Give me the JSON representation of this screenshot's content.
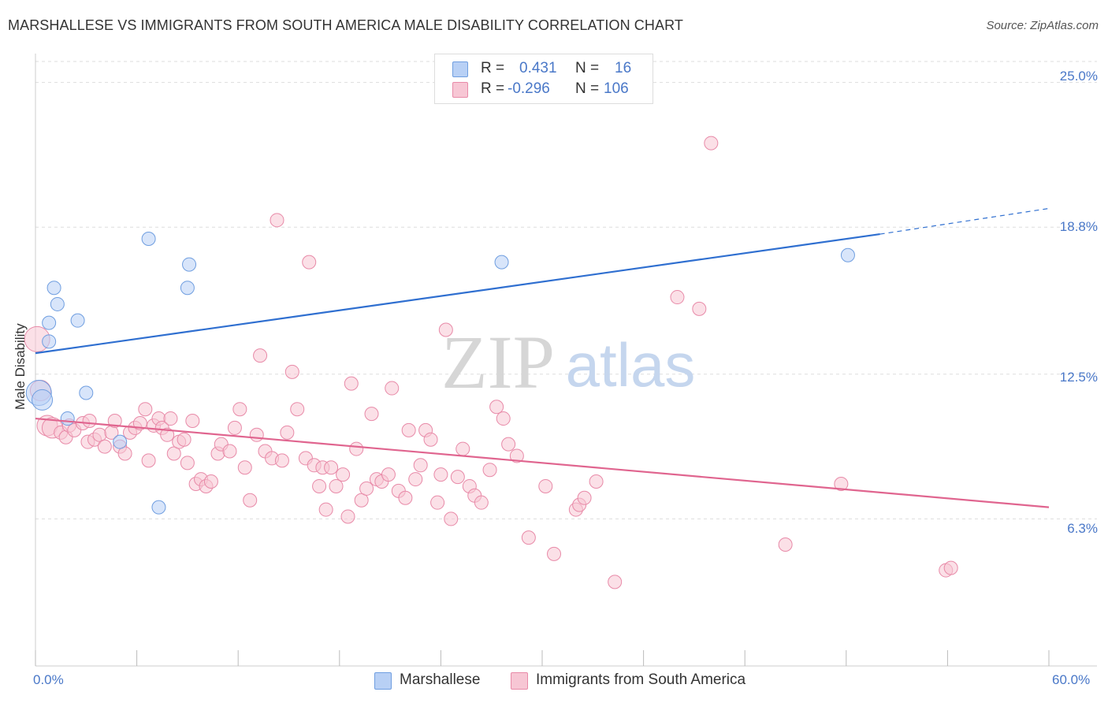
{
  "title": "MARSHALLESE VS IMMIGRANTS FROM SOUTH AMERICA MALE DISABILITY CORRELATION CHART",
  "source": "Source: ZipAtlas.com",
  "watermark": {
    "zip": "ZIP",
    "atlas": "atlas"
  },
  "colors": {
    "blue_fill": "#b8d0f5",
    "blue_stroke": "#6f9ee0",
    "blue_line": "#2f6fd0",
    "pink_fill": "#f7c6d4",
    "pink_stroke": "#e88aa8",
    "pink_line": "#e0658f",
    "grid": "#dddddd",
    "tick_text": "#4a78c8"
  },
  "legend": {
    "rows": [
      {
        "r_label": "R =",
        "r_value": "0.431",
        "n_label": "N =",
        "n_value": "16"
      },
      {
        "r_label": "R =",
        "r_value": "-0.296",
        "n_label": "N =",
        "n_value": "106"
      }
    ]
  },
  "bottom_legend": [
    "Marshallese",
    "Immigrants from South America"
  ],
  "chart_data": {
    "type": "scatter",
    "title": "MARSHALLESE VS IMMIGRANTS FROM SOUTH AMERICA MALE DISABILITY CORRELATION CHART",
    "xlabel": "",
    "ylabel": "Male Disability",
    "xlim": [
      0,
      60
    ],
    "ylim": [
      0,
      26.1
    ],
    "x_tick_labels": [
      "0.0%",
      "60.0%"
    ],
    "y_ticks": [
      6.3,
      12.5,
      18.8,
      25.0
    ],
    "y_tick_labels": [
      "6.3%",
      "12.5%",
      "18.8%",
      "25.0%"
    ],
    "grid": "horizontal dashed",
    "series": [
      {
        "name": "Marshallese",
        "points": [
          [
            0.2,
            11.7
          ],
          [
            0.4,
            11.4
          ],
          [
            0.8,
            14.7
          ],
          [
            0.8,
            13.9
          ],
          [
            1.1,
            16.2
          ],
          [
            1.3,
            15.5
          ],
          [
            1.9,
            10.6
          ],
          [
            2.5,
            14.8
          ],
          [
            3.0,
            11.7
          ],
          [
            5.0,
            9.6
          ],
          [
            6.7,
            18.3
          ],
          [
            7.3,
            6.8
          ],
          [
            9.1,
            17.2
          ],
          [
            9.0,
            16.2
          ],
          [
            27.6,
            17.3
          ],
          [
            48.1,
            17.6
          ]
        ],
        "trend": {
          "x": [
            0,
            50
          ],
          "y": [
            13.4,
            18.5
          ],
          "dashed_to": [
            60,
            19.6
          ]
        }
      },
      {
        "name": "Immigrants from South America",
        "points": [
          [
            0.1,
            14.0
          ],
          [
            0.3,
            11.8
          ],
          [
            0.7,
            10.3
          ],
          [
            1.0,
            10.2
          ],
          [
            1.5,
            10.0
          ],
          [
            1.8,
            9.8
          ],
          [
            2.0,
            10.3
          ],
          [
            2.3,
            10.1
          ],
          [
            2.8,
            10.4
          ],
          [
            3.2,
            10.5
          ],
          [
            3.1,
            9.6
          ],
          [
            3.5,
            9.7
          ],
          [
            3.8,
            9.9
          ],
          [
            4.1,
            9.4
          ],
          [
            4.5,
            10.0
          ],
          [
            4.7,
            10.5
          ],
          [
            5.0,
            9.4
          ],
          [
            5.3,
            9.1
          ],
          [
            5.6,
            10.0
          ],
          [
            5.9,
            10.2
          ],
          [
            6.2,
            10.4
          ],
          [
            6.5,
            11.0
          ],
          [
            6.7,
            8.8
          ],
          [
            7.0,
            10.3
          ],
          [
            7.3,
            10.6
          ],
          [
            7.5,
            10.2
          ],
          [
            7.8,
            9.9
          ],
          [
            8.0,
            10.6
          ],
          [
            8.2,
            9.1
          ],
          [
            8.5,
            9.6
          ],
          [
            8.8,
            9.7
          ],
          [
            9.0,
            8.7
          ],
          [
            9.3,
            10.5
          ],
          [
            9.5,
            7.8
          ],
          [
            9.8,
            8.0
          ],
          [
            10.1,
            7.7
          ],
          [
            10.4,
            7.9
          ],
          [
            10.8,
            9.1
          ],
          [
            11.0,
            9.5
          ],
          [
            11.5,
            9.2
          ],
          [
            11.8,
            10.2
          ],
          [
            12.1,
            11.0
          ],
          [
            12.4,
            8.5
          ],
          [
            12.7,
            7.1
          ],
          [
            13.1,
            9.9
          ],
          [
            13.3,
            13.3
          ],
          [
            13.6,
            9.2
          ],
          [
            14.0,
            8.9
          ],
          [
            14.3,
            19.1
          ],
          [
            14.6,
            8.8
          ],
          [
            14.9,
            10.0
          ],
          [
            15.2,
            12.6
          ],
          [
            15.5,
            11.0
          ],
          [
            16.0,
            8.9
          ],
          [
            16.2,
            17.3
          ],
          [
            16.5,
            8.6
          ],
          [
            16.8,
            7.7
          ],
          [
            17.0,
            8.5
          ],
          [
            17.2,
            6.7
          ],
          [
            17.5,
            8.5
          ],
          [
            17.8,
            7.7
          ],
          [
            18.2,
            8.2
          ],
          [
            18.5,
            6.4
          ],
          [
            18.7,
            12.1
          ],
          [
            19.0,
            9.3
          ],
          [
            19.3,
            7.1
          ],
          [
            19.6,
            7.6
          ],
          [
            19.9,
            10.8
          ],
          [
            20.2,
            8.0
          ],
          [
            20.5,
            7.9
          ],
          [
            20.9,
            8.2
          ],
          [
            21.1,
            11.9
          ],
          [
            21.5,
            7.5
          ],
          [
            21.9,
            7.2
          ],
          [
            22.1,
            10.1
          ],
          [
            22.5,
            8.0
          ],
          [
            22.8,
            8.6
          ],
          [
            23.1,
            10.1
          ],
          [
            23.4,
            9.7
          ],
          [
            23.8,
            7.0
          ],
          [
            24.0,
            8.2
          ],
          [
            24.3,
            14.4
          ],
          [
            24.6,
            6.3
          ],
          [
            25.0,
            8.1
          ],
          [
            25.3,
            9.3
          ],
          [
            25.7,
            7.7
          ],
          [
            26.0,
            7.3
          ],
          [
            26.4,
            7.0
          ],
          [
            26.9,
            8.4
          ],
          [
            27.3,
            11.1
          ],
          [
            27.7,
            10.6
          ],
          [
            28.0,
            9.5
          ],
          [
            28.5,
            9.0
          ],
          [
            29.2,
            5.5
          ],
          [
            30.2,
            7.7
          ],
          [
            30.7,
            4.8
          ],
          [
            32.0,
            6.7
          ],
          [
            32.2,
            6.9
          ],
          [
            32.5,
            7.2
          ],
          [
            33.2,
            7.9
          ],
          [
            34.3,
            3.6
          ],
          [
            38.0,
            15.8
          ],
          [
            39.3,
            15.3
          ],
          [
            40.0,
            22.4
          ],
          [
            44.4,
            5.2
          ],
          [
            47.7,
            7.8
          ],
          [
            53.9,
            4.1
          ],
          [
            54.2,
            4.2
          ]
        ],
        "trend": {
          "x": [
            0,
            60
          ],
          "y": [
            10.6,
            6.8
          ]
        }
      }
    ]
  }
}
